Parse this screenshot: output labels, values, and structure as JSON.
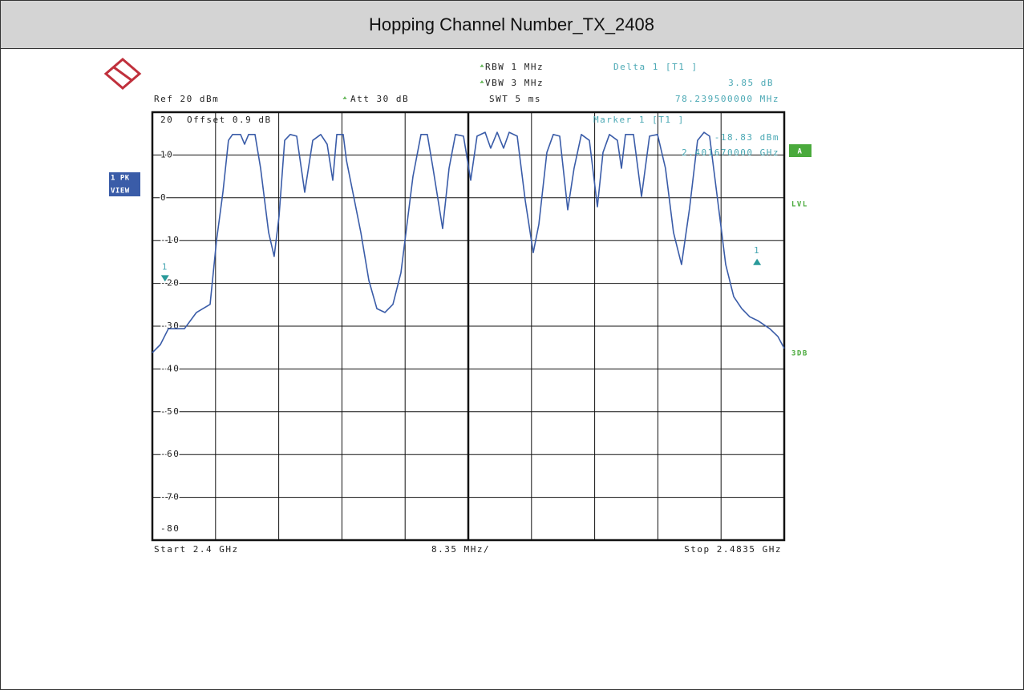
{
  "title": "Hopping Channel Number_TX_2408",
  "chart_data": {
    "type": "line",
    "settings": {
      "rbw": "RBW 1 MHz",
      "vbw": "VBW 3 MHz",
      "swt": "SWT 5 ms",
      "ref": "Ref 20 dBm",
      "att": "Att 30 dB",
      "offset": "Offset 0.9 dB"
    },
    "delta": {
      "label": "Delta 1 [T1 ]",
      "level": "3.85 dB",
      "freq": "78.239500000 MHz"
    },
    "marker": {
      "label": "Marker 1 [T1 ]",
      "level": "-18.83 dBm",
      "freq": "2.401670000 GHz"
    },
    "side": {
      "trace": "A",
      "lvl": "LVL",
      "db": "3DB",
      "mode1": "1 PK",
      "mode2": "VIEW"
    },
    "footer": {
      "start": "Start 2.4 GHz",
      "span": "8.35 MHz/",
      "stop": "Stop 2.4835 GHz"
    },
    "markers": [
      {
        "label": "1",
        "x": 2.40167,
        "y": -18.83,
        "dir": "down"
      },
      {
        "label": "1",
        "x": 2.47991,
        "y": -14.98,
        "dir": "up"
      }
    ],
    "xlim": [
      2.4,
      2.4835
    ],
    "xticks": [
      2.4,
      2.40835,
      2.4167,
      2.42505,
      2.4334,
      2.44175,
      2.4501,
      2.45845,
      2.4668,
      2.47515,
      2.4835
    ],
    "ylim": [
      -80,
      20
    ],
    "yticks": [
      20,
      10,
      0,
      -10,
      -20,
      -30,
      -40,
      -50,
      -60,
      -70,
      -80
    ],
    "grid": true,
    "series": [
      {
        "name": "Trace 1",
        "color": "#3a5ca8",
        "x": [
          2.4,
          2.40106,
          2.40212,
          2.40424,
          2.40583,
          2.40763,
          2.40848,
          2.40932,
          2.41006,
          2.4106,
          2.41166,
          2.41219,
          2.41272,
          2.41356,
          2.4143,
          2.41536,
          2.4161,
          2.41674,
          2.41748,
          2.41822,
          2.41907,
          2.42013,
          2.42119,
          2.42225,
          2.4231,
          2.42384,
          2.42437,
          2.42522,
          2.42564,
          2.42649,
          2.42755,
          2.42861,
          2.42967,
          2.43073,
          2.43179,
          2.43285,
          2.43338,
          2.43444,
          2.4355,
          2.43634,
          2.43709,
          2.43836,
          2.43921,
          2.44005,
          2.44111,
          2.44207,
          2.44291,
          2.44397,
          2.44471,
          2.44556,
          2.44641,
          2.44715,
          2.44821,
          2.44927,
          2.45033,
          2.45108,
          2.45213,
          2.45298,
          2.45383,
          2.45489,
          2.45573,
          2.45669,
          2.45775,
          2.45881,
          2.45955,
          2.4604,
          2.46146,
          2.46199,
          2.46252,
          2.46358,
          2.46464,
          2.4657,
          2.46676,
          2.46781,
          2.46887,
          2.46993,
          2.47099,
          2.47205,
          2.4729,
          2.47364,
          2.4747,
          2.47576,
          2.47682,
          2.47788,
          2.47894,
          2.48,
          2.48159,
          2.48265,
          2.4835
        ],
        "values": [
          -36.2,
          -34.3,
          -30.6,
          -30.6,
          -26.8,
          -24.9,
          -10.0,
          1.3,
          13.4,
          14.8,
          14.8,
          12.5,
          14.8,
          14.8,
          6.9,
          -8.1,
          -13.7,
          -4.3,
          13.4,
          14.8,
          14.4,
          1.3,
          13.4,
          14.8,
          12.5,
          4.1,
          14.8,
          14.8,
          8.8,
          1.3,
          -8.1,
          -19.3,
          -25.9,
          -26.8,
          -24.9,
          -17.5,
          -10.0,
          5.0,
          14.8,
          14.8,
          6.9,
          -7.2,
          6.9,
          14.8,
          14.4,
          4.1,
          14.4,
          15.3,
          11.6,
          15.3,
          11.6,
          15.3,
          14.4,
          -0.6,
          -12.8,
          -6.2,
          10.6,
          14.8,
          14.4,
          -2.8,
          6.9,
          14.8,
          13.4,
          -2.1,
          10.6,
          14.8,
          13.4,
          6.9,
          14.8,
          14.8,
          0.3,
          14.4,
          14.8,
          6.9,
          -8.1,
          -15.6,
          -2.5,
          13.4,
          15.3,
          14.4,
          -0.6,
          -15.6,
          -23.1,
          -25.9,
          -27.8,
          -28.7,
          -30.6,
          -32.4,
          -35.2
        ]
      }
    ]
  }
}
